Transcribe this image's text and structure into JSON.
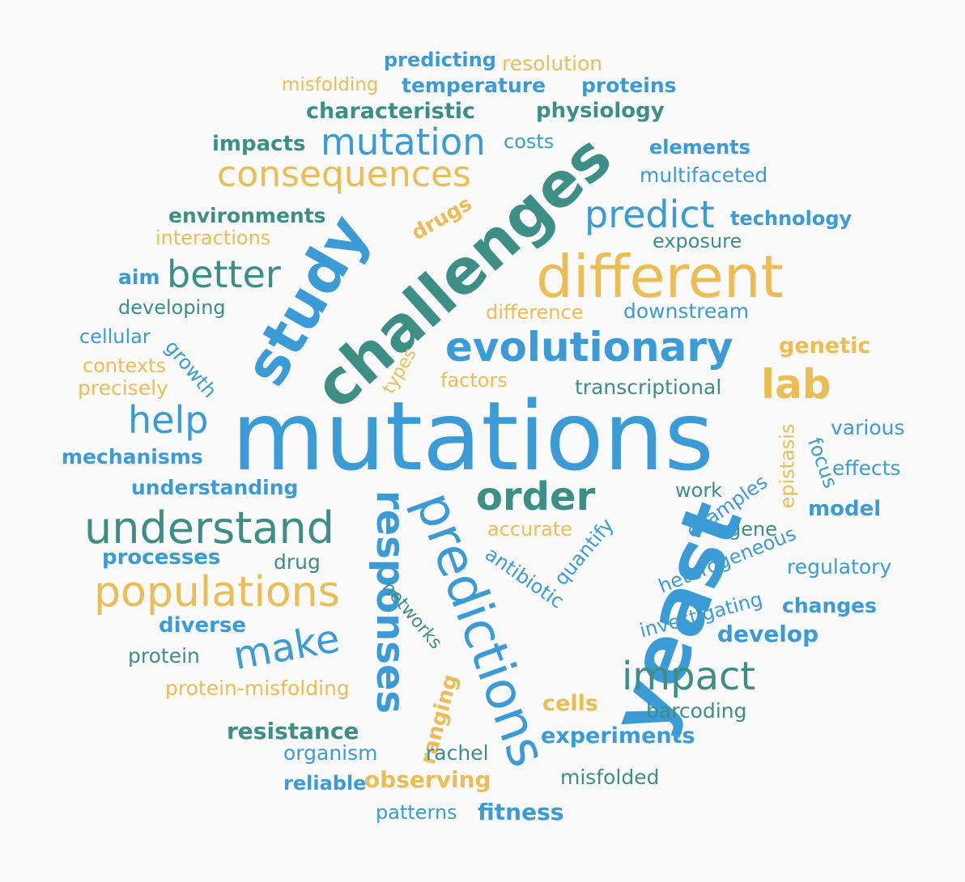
{
  "palette": {
    "background": "#fafafa",
    "blue": "#3b9bd6",
    "teal": "#3d8f86",
    "gold": "#ecbc55"
  },
  "words": [
    {
      "text": "predicting",
      "color": "blue"
    },
    {
      "text": "resolution",
      "color": "gold"
    },
    {
      "text": "misfolding",
      "color": "gold"
    },
    {
      "text": "temperature",
      "color": "blue"
    },
    {
      "text": "proteins",
      "color": "blue"
    },
    {
      "text": "characteristic",
      "color": "teal"
    },
    {
      "text": "physiology",
      "color": "teal"
    },
    {
      "text": "impacts",
      "color": "teal"
    },
    {
      "text": "mutation",
      "color": "blue"
    },
    {
      "text": "costs",
      "color": "blue"
    },
    {
      "text": "elements",
      "color": "blue"
    },
    {
      "text": "consequences",
      "color": "gold"
    },
    {
      "text": "multifaceted",
      "color": "blue"
    },
    {
      "text": "challenges",
      "color": "teal"
    },
    {
      "text": "predict",
      "color": "blue"
    },
    {
      "text": "technology",
      "color": "blue"
    },
    {
      "text": "environments",
      "color": "teal"
    },
    {
      "text": "drugs",
      "color": "gold"
    },
    {
      "text": "interactions",
      "color": "gold"
    },
    {
      "text": "exposure",
      "color": "teal"
    },
    {
      "text": "study",
      "color": "blue"
    },
    {
      "text": "aim",
      "color": "blue"
    },
    {
      "text": "better",
      "color": "teal"
    },
    {
      "text": "different",
      "color": "gold"
    },
    {
      "text": "developing",
      "color": "teal"
    },
    {
      "text": "difference",
      "color": "gold"
    },
    {
      "text": "downstream",
      "color": "blue"
    },
    {
      "text": "cellular",
      "color": "blue"
    },
    {
      "text": "growth",
      "color": "blue"
    },
    {
      "text": "evolutionary",
      "color": "blue"
    },
    {
      "text": "genetic",
      "color": "gold"
    },
    {
      "text": "contexts",
      "color": "gold"
    },
    {
      "text": "types",
      "color": "gold"
    },
    {
      "text": "precisely",
      "color": "gold"
    },
    {
      "text": "factors",
      "color": "gold"
    },
    {
      "text": "transcriptional",
      "color": "teal"
    },
    {
      "text": "lab",
      "color": "gold"
    },
    {
      "text": "help",
      "color": "blue"
    },
    {
      "text": "mutations",
      "color": "blue"
    },
    {
      "text": "various",
      "color": "blue"
    },
    {
      "text": "mechanisms",
      "color": "blue"
    },
    {
      "text": "epistasis",
      "color": "gold"
    },
    {
      "text": "focus",
      "color": "blue"
    },
    {
      "text": "effects",
      "color": "blue"
    },
    {
      "text": "understanding",
      "color": "blue"
    },
    {
      "text": "order",
      "color": "teal"
    },
    {
      "text": "work",
      "color": "teal"
    },
    {
      "text": "examples",
      "color": "blue"
    },
    {
      "text": "model",
      "color": "blue"
    },
    {
      "text": "understand",
      "color": "teal"
    },
    {
      "text": "accurate",
      "color": "gold"
    },
    {
      "text": "quantify",
      "color": "blue"
    },
    {
      "text": "gene",
      "color": "teal"
    },
    {
      "text": "heterogeneous",
      "color": "blue"
    },
    {
      "text": "processes",
      "color": "blue"
    },
    {
      "text": "drug",
      "color": "teal"
    },
    {
      "text": "antibiotic",
      "color": "blue"
    },
    {
      "text": "regulatory",
      "color": "blue"
    },
    {
      "text": "populations",
      "color": "gold"
    },
    {
      "text": "responses",
      "color": "blue"
    },
    {
      "text": "networks",
      "color": "teal"
    },
    {
      "text": "predictions",
      "color": "blue"
    },
    {
      "text": "yeast",
      "color": "blue"
    },
    {
      "text": "investigating",
      "color": "blue"
    },
    {
      "text": "changes",
      "color": "blue"
    },
    {
      "text": "diverse",
      "color": "blue"
    },
    {
      "text": "develop",
      "color": "blue"
    },
    {
      "text": "make",
      "color": "blue"
    },
    {
      "text": "protein",
      "color": "teal"
    },
    {
      "text": "impact",
      "color": "teal"
    },
    {
      "text": "protein-misfolding",
      "color": "gold"
    },
    {
      "text": "cells",
      "color": "gold"
    },
    {
      "text": "barcoding",
      "color": "teal"
    },
    {
      "text": "ranging",
      "color": "gold"
    },
    {
      "text": "resistance",
      "color": "teal"
    },
    {
      "text": "experiments",
      "color": "blue"
    },
    {
      "text": "organism",
      "color": "blue"
    },
    {
      "text": "rachel",
      "color": "teal"
    },
    {
      "text": "misfolded",
      "color": "teal"
    },
    {
      "text": "reliable",
      "color": "blue"
    },
    {
      "text": "observing",
      "color": "gold"
    },
    {
      "text": "patterns",
      "color": "blue"
    },
    {
      "text": "fitness",
      "color": "blue"
    }
  ]
}
